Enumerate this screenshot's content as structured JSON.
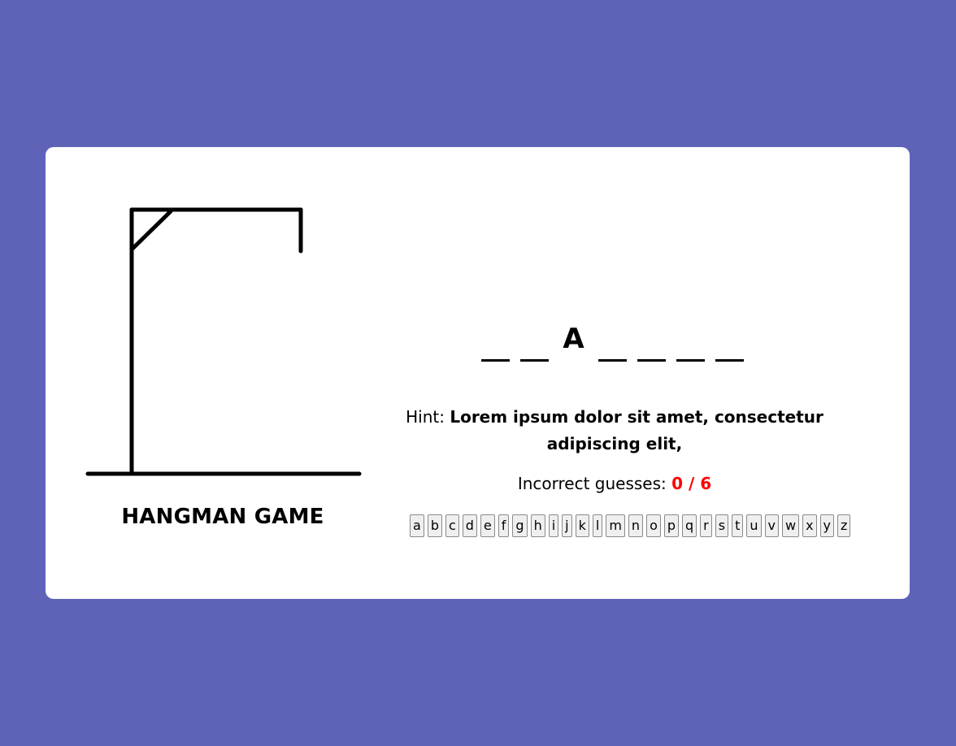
{
  "title": "HANGMAN GAME",
  "word": {
    "letters": [
      "",
      "",
      "A",
      "",
      "",
      "",
      ""
    ]
  },
  "hint": {
    "prefix": "Hint: ",
    "text": "Lorem ipsum dolor sit amet, consectetur adipiscing elit,"
  },
  "guesses": {
    "label": "Incorrect guesses: ",
    "count": "0 / 6"
  },
  "keyboard": {
    "keys": [
      "a",
      "b",
      "c",
      "d",
      "e",
      "f",
      "g",
      "h",
      "i",
      "j",
      "k",
      "l",
      "m",
      "n",
      "o",
      "p",
      "q",
      "r",
      "s",
      "t",
      "u",
      "v",
      "w",
      "x",
      "y",
      "z"
    ]
  },
  "colors": {
    "background": "#5e63b8",
    "card": "#ffffff",
    "incorrect_count": "#ff0000"
  },
  "icons": {
    "gallows": "gallows-icon"
  }
}
